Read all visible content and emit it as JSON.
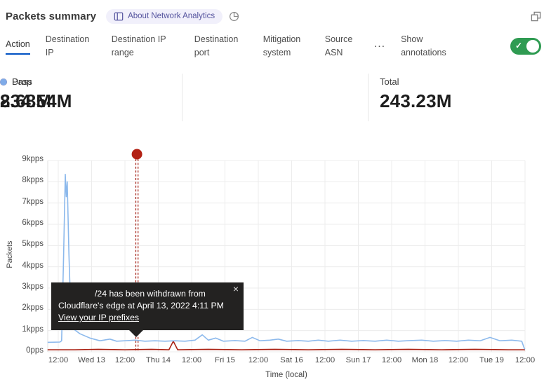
{
  "header": {
    "title": "Packets summary",
    "badge_label": "About Network Analytics",
    "icons": {
      "badge": "book-icon",
      "time": "pie-clock-icon",
      "window": "overlapping-squares-icon"
    },
    "badge_color": "#55549e",
    "badge_bg": "#f1f0fb"
  },
  "tabs": {
    "items": [
      {
        "label": "Action",
        "active": true
      },
      {
        "label": "Destination IP",
        "active": false
      },
      {
        "label": "Destination IP range",
        "active": false
      },
      {
        "label": "Destination port",
        "active": false
      },
      {
        "label": "Mitigation system",
        "active": false
      },
      {
        "label": "Source ASN",
        "active": false
      }
    ],
    "more_label": "...",
    "annotations_label": "Show annotations",
    "annotations_toggle": {
      "state": "on",
      "color": "#2f9b52"
    },
    "active_underline_color": "#0051c3"
  },
  "stats": [
    {
      "label": "Total",
      "value": "243.23M",
      "dot_color": null
    },
    {
      "label": "Drop",
      "value": "8.68M",
      "dot_color": "#b01e13"
    },
    {
      "label": "Pass",
      "value": "234.54M",
      "dot_color": "#7fabe8"
    }
  ],
  "tooltip": {
    "line1": "/24 has been withdrawn from",
    "line2": "Cloudflare's edge at April 13, 2022 4:11 PM",
    "link": "View your IP prefixes",
    "close": "×"
  },
  "chart_data": {
    "type": "line",
    "title": "",
    "xlabel": "Time (local)",
    "ylabel": "Packets",
    "y_tick_labels": [
      "9kpps",
      "8kpps",
      "7kpps",
      "6kpps",
      "5kpps",
      "4kpps",
      "3kpps",
      "2kpps",
      "1kpps",
      "0pps"
    ],
    "x_tick_labels": [
      "12:00",
      "Wed 13",
      "12:00",
      "Thu 14",
      "12:00",
      "Fri 15",
      "12:00",
      "Sat 16",
      "12:00",
      "Sun 17",
      "12:00",
      "Mon 18",
      "12:00",
      "Tue 19",
      "12:00"
    ],
    "ylim": [
      0,
      9
    ],
    "y_unit": "kpps",
    "grid": "both",
    "legend_position": "in-stats-row",
    "annotation": {
      "x_tick_units": 2.36,
      "date": "April 13, 2022 4:11 PM",
      "color": "#a32015",
      "style": "dashed-vertical-line-with-dot"
    },
    "series": [
      {
        "name": "Pass",
        "color": "#8cb9ec",
        "points": [
          [
            -0.32,
            0.45
          ],
          [
            0.05,
            0.46
          ],
          [
            0.1,
            0.52
          ],
          [
            0.16,
            4.5
          ],
          [
            0.21,
            8.35
          ],
          [
            0.24,
            7.3
          ],
          [
            0.27,
            8.0
          ],
          [
            0.32,
            4.6
          ],
          [
            0.38,
            1.7
          ],
          [
            0.48,
            1.05
          ],
          [
            0.65,
            0.85
          ],
          [
            0.95,
            0.65
          ],
          [
            1.25,
            0.52
          ],
          [
            1.55,
            0.6
          ],
          [
            1.75,
            0.5
          ],
          [
            2.0,
            0.52
          ],
          [
            2.3,
            0.55
          ],
          [
            2.6,
            0.5
          ],
          [
            2.9,
            0.52
          ],
          [
            3.2,
            0.5
          ],
          [
            3.5,
            0.52
          ],
          [
            3.8,
            0.5
          ],
          [
            4.1,
            0.55
          ],
          [
            4.32,
            0.8
          ],
          [
            4.5,
            0.55
          ],
          [
            4.72,
            0.65
          ],
          [
            4.95,
            0.5
          ],
          [
            5.3,
            0.53
          ],
          [
            5.6,
            0.5
          ],
          [
            5.82,
            0.68
          ],
          [
            6.05,
            0.52
          ],
          [
            6.35,
            0.55
          ],
          [
            6.6,
            0.6
          ],
          [
            6.85,
            0.5
          ],
          [
            7.2,
            0.53
          ],
          [
            7.5,
            0.5
          ],
          [
            7.8,
            0.55
          ],
          [
            8.1,
            0.5
          ],
          [
            8.45,
            0.55
          ],
          [
            8.8,
            0.5
          ],
          [
            9.15,
            0.53
          ],
          [
            9.5,
            0.5
          ],
          [
            9.85,
            0.55
          ],
          [
            10.2,
            0.5
          ],
          [
            10.55,
            0.53
          ],
          [
            10.9,
            0.55
          ],
          [
            11.25,
            0.5
          ],
          [
            11.6,
            0.53
          ],
          [
            11.95,
            0.5
          ],
          [
            12.3,
            0.55
          ],
          [
            12.65,
            0.52
          ],
          [
            12.95,
            0.68
          ],
          [
            13.25,
            0.52
          ],
          [
            13.6,
            0.55
          ],
          [
            13.9,
            0.5
          ],
          [
            13.98,
            0.15
          ],
          [
            14.0,
            0.12
          ]
        ]
      },
      {
        "name": "Drop",
        "color": "#aa2113",
        "points": [
          [
            -0.32,
            0.1
          ],
          [
            0.5,
            0.1
          ],
          [
            1.2,
            0.12
          ],
          [
            2.0,
            0.1
          ],
          [
            2.8,
            0.12
          ],
          [
            3.32,
            0.1
          ],
          [
            3.45,
            0.5
          ],
          [
            3.58,
            0.1
          ],
          [
            4.5,
            0.12
          ],
          [
            5.5,
            0.1
          ],
          [
            6.5,
            0.12
          ],
          [
            7.5,
            0.1
          ],
          [
            8.5,
            0.12
          ],
          [
            9.5,
            0.1
          ],
          [
            10.5,
            0.12
          ],
          [
            11.5,
            0.1
          ],
          [
            12.5,
            0.12
          ],
          [
            13.5,
            0.1
          ],
          [
            14.0,
            0.1
          ]
        ]
      }
    ]
  }
}
